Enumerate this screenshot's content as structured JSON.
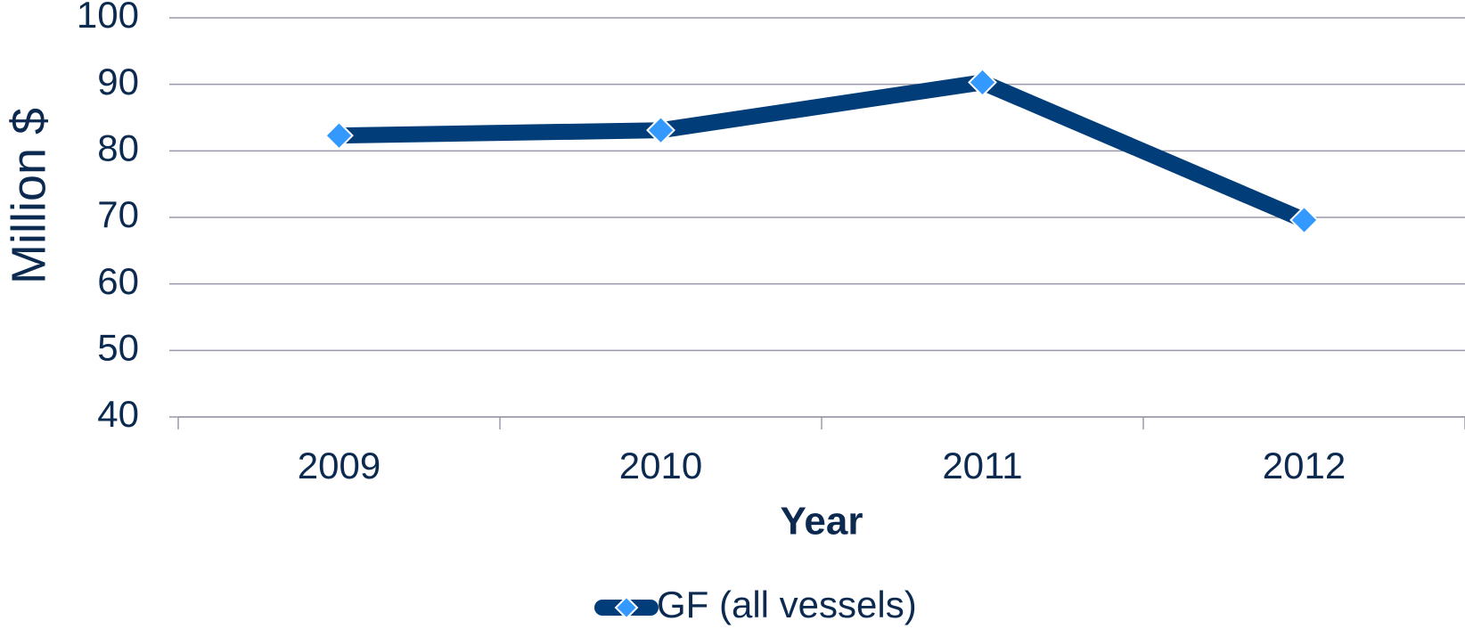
{
  "chart_data": {
    "type": "line",
    "categories": [
      "2009",
      "2010",
      "2011",
      "2012"
    ],
    "series": [
      {
        "name": "GF (all vessels)",
        "color": "#003d79",
        "marker_color": "#3399ff",
        "values": [
          82.3,
          83.1,
          90.3,
          69.6
        ]
      }
    ],
    "xlabel": "Year",
    "ylabel": "Million $",
    "ylim": [
      40,
      100
    ],
    "yticks": [
      40,
      50,
      60,
      70,
      80,
      90,
      100
    ],
    "grid": true,
    "legend": "bottom"
  }
}
